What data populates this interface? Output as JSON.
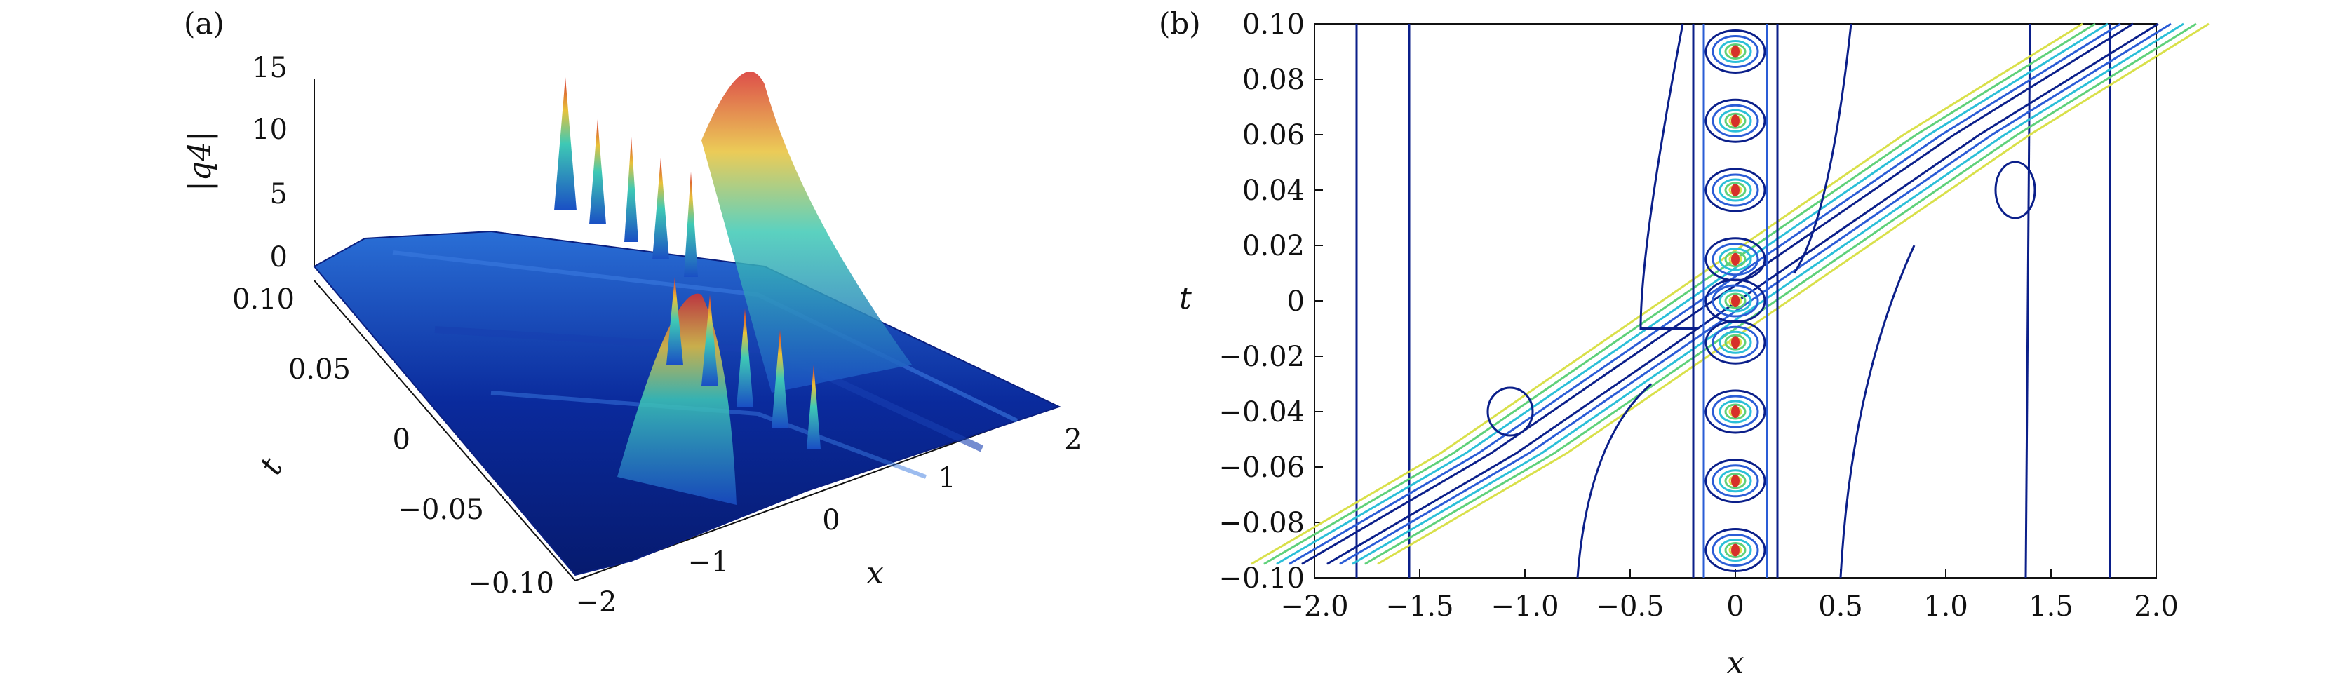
{
  "chart_data": [
    {
      "panel_label": "(a)",
      "type": "surface3d",
      "xlabel": "x",
      "ylabel": "t",
      "zlabel": "|q4|",
      "x_ticks": [
        "−2",
        "−1",
        "0",
        "1",
        "2"
      ],
      "t_ticks": [
        "0.10",
        "0.05",
        "0",
        "−0.05",
        "−0.10"
      ],
      "z_ticks": [
        "15",
        "10",
        "5",
        "0"
      ],
      "xlim": [
        -2,
        2
      ],
      "tlim": [
        -0.1,
        0.1
      ],
      "zlim": [
        0,
        15
      ],
      "colormap": "jet"
    },
    {
      "panel_label": "(b)",
      "type": "contour",
      "xlabel": "x",
      "ylabel": "t",
      "x_ticks": [
        "−2.0",
        "−1.5",
        "−1.0",
        "−0.5",
        "0",
        "0.5",
        "1.0",
        "1.5",
        "2.0"
      ],
      "y_ticks": [
        "0.10",
        "0.08",
        "0.06",
        "0.04",
        "0.02",
        "0",
        "−0.02",
        "−0.04",
        "−0.06",
        "−0.08",
        "−0.10"
      ],
      "xlim": [
        -2,
        2
      ],
      "ylim": [
        -0.1,
        0.1
      ],
      "colormap": "jet",
      "peaks_at_x0_t": [
        0.09,
        0.065,
        0.04,
        0.015,
        0.0,
        -0.015,
        -0.04,
        -0.065,
        -0.09
      ]
    }
  ]
}
